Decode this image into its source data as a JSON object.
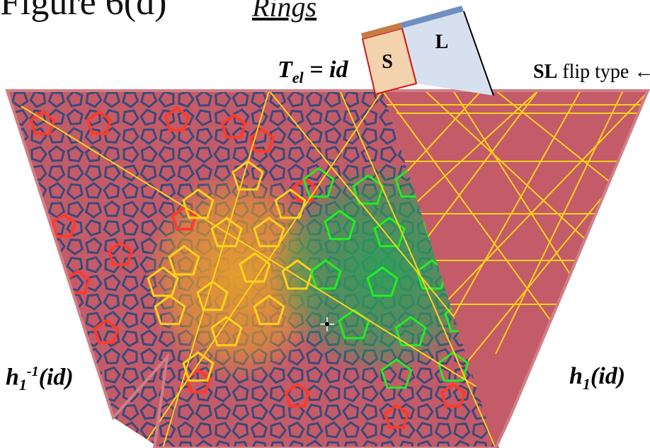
{
  "figure": {
    "title": "Figure 6(d)",
    "subtitle": "Rings"
  },
  "labels": {
    "t_el_main": "T",
    "t_el_sub": "el",
    "t_el_rest": " = id",
    "flip_bold": "SL",
    "flip_rest": " flip type ←",
    "h_inv_main": "h",
    "h_inv_sub": "1",
    "h_inv_sup": "-1",
    "h_inv_rest": "(id)",
    "h1_main": "h",
    "h1_sub": "1",
    "h1_rest": "(id)"
  },
  "tiles": {
    "s_label": "S",
    "l_label": "L"
  },
  "colors": {
    "background": "#c45b68",
    "pattern": "#3a4a7a",
    "red_rings": "#ff3a2a",
    "yellow_rings": "#ffd21a",
    "green_rings": "#22ee22",
    "s_tile_fill": "#f3d3ae",
    "s_tile_top": "#c77b45",
    "l_tile_fill": "#d7e0ee",
    "l_tile_top": "#6f8fc2",
    "yellow_glow": "#e6a02c",
    "green_glow": "#2aa05a"
  }
}
